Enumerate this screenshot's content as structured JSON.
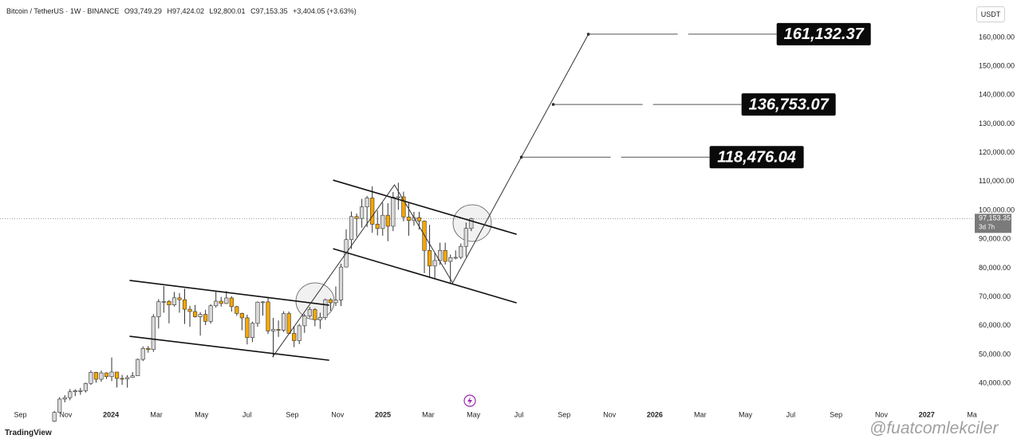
{
  "chart_data": {
    "type": "candlestick",
    "header": {
      "symbol": "Bitcoin / TetherUS · 1W · BINANCE",
      "open": "O93,749.29",
      "high": "H97,424.02",
      "low": "L92,800.01",
      "close": "C97,153.35",
      "change": "+3,404.05 (+3.63%)"
    },
    "currency": "USDT",
    "brand": "TradingView",
    "watermark": "@fuatcomlekciler",
    "up_color": "#d9d9d9",
    "down_color": "#f7a600",
    "xlim": [
      -0.9,
      42.05
    ],
    "ylim": [
      32000,
      173000
    ],
    "xticks": [
      {
        "value": 0,
        "label": "Sep"
      },
      {
        "value": 2,
        "label": "Nov"
      },
      {
        "value": 4,
        "label": "2024"
      },
      {
        "value": 6,
        "label": "Mar"
      },
      {
        "value": 8,
        "label": "May"
      },
      {
        "value": 10,
        "label": "Jul"
      },
      {
        "value": 12,
        "label": "Sep"
      },
      {
        "value": 14,
        "label": "Nov"
      },
      {
        "value": 16,
        "label": "2025"
      },
      {
        "value": 18,
        "label": "Mar"
      },
      {
        "value": 20,
        "label": "May"
      },
      {
        "value": 22,
        "label": "Jul"
      },
      {
        "value": 24,
        "label": "Sep"
      },
      {
        "value": 26,
        "label": "Nov"
      },
      {
        "value": 28,
        "label": "2026"
      },
      {
        "value": 30,
        "label": "Mar"
      },
      {
        "value": 32,
        "label": "May"
      },
      {
        "value": 34,
        "label": "Jul"
      },
      {
        "value": 36,
        "label": "Sep"
      },
      {
        "value": 38,
        "label": "Nov"
      },
      {
        "value": 40,
        "label": "2027"
      },
      {
        "value": 42,
        "label": "Ma"
      }
    ],
    "yticks": [
      {
        "value": 40000,
        "label": "40,000.00"
      },
      {
        "value": 50000,
        "label": "50,000.00"
      },
      {
        "value": 60000,
        "label": "60,000.00"
      },
      {
        "value": 70000,
        "label": "70,000.00"
      },
      {
        "value": 80000,
        "label": "80,000.00"
      },
      {
        "value": 90000,
        "label": "90,000.00"
      },
      {
        "value": 100000,
        "label": "100,000.00"
      },
      {
        "value": 110000,
        "label": "110,000.00"
      },
      {
        "value": 120000,
        "label": "120,000.00"
      },
      {
        "value": 130000,
        "label": "130,000.00"
      },
      {
        "value": 140000,
        "label": "140,000.00"
      },
      {
        "value": 150000,
        "label": "150,000.00"
      },
      {
        "value": 160000,
        "label": "160,000.00"
      }
    ],
    "x": [
      1.5,
      1.73,
      1.96,
      2.19,
      2.42,
      2.65,
      2.88,
      3.11,
      3.34,
      3.57,
      3.8,
      4.03,
      4.26,
      4.49,
      4.72,
      4.95,
      5.18,
      5.41,
      5.64,
      5.87,
      6.1,
      6.33,
      6.56,
      6.79,
      7.02,
      7.25,
      7.48,
      7.71,
      7.94,
      8.17,
      8.4,
      8.63,
      8.86,
      9.09,
      9.32,
      9.55,
      9.78,
      10.01,
      10.24,
      10.47,
      10.7,
      10.93,
      11.16,
      11.39,
      11.62,
      11.85,
      12.08,
      12.31,
      12.54,
      12.77,
      13.0,
      13.23,
      13.46,
      13.69,
      13.92,
      14.15,
      14.38,
      14.61,
      14.84,
      15.07,
      15.3,
      15.53,
      15.76,
      15.99,
      16.22,
      16.45,
      16.68,
      16.91,
      17.14,
      17.37,
      17.6,
      17.83,
      18.06,
      18.29,
      18.52,
      18.75,
      18.98,
      19.21,
      19.44,
      19.67,
      19.9
    ],
    "open": [
      26850,
      29900,
      34500,
      35000,
      37050,
      37400,
      37450,
      39950,
      43800,
      41400,
      43600,
      42300,
      43900,
      41700,
      41550,
      42000,
      42600,
      48300,
      52100,
      51700,
      63100,
      68300,
      68400,
      67200,
      69650,
      69000,
      65700,
      64900,
      63100,
      63900,
      61500,
      66900,
      68500,
      67700,
      69600,
      66600,
      64250,
      62700,
      55850,
      60800,
      68150,
      68250,
      58150,
      58700,
      58400,
      64200,
      57300,
      54800,
      59950,
      63350,
      65600,
      62050,
      62850,
      69000,
      67950,
      68900,
      80350,
      89850,
      97850,
      97200,
      101200,
      104300,
      95200,
      93700,
      98300,
      94500,
      104600,
      104700,
      97700,
      96500,
      97500,
      96300,
      86100,
      80700,
      82600,
      86100,
      82300,
      83600,
      83700,
      87500,
      93749.29
    ],
    "high": [
      30400,
      35200,
      35900,
      38000,
      37950,
      38400,
      40250,
      44500,
      44000,
      44400,
      43800,
      48950,
      43200,
      42900,
      42850,
      43900,
      48600,
      52800,
      52950,
      64000,
      69200,
      73750,
      68900,
      71700,
      71300,
      72800,
      66900,
      67200,
      64700,
      65500,
      67400,
      71900,
      70000,
      72000,
      70200,
      66900,
      64500,
      63800,
      61400,
      68400,
      68500,
      70000,
      62700,
      61800,
      65000,
      64900,
      59800,
      60650,
      64100,
      66500,
      66100,
      64500,
      69400,
      69500,
      73600,
      81500,
      93400,
      99600,
      98900,
      104000,
      105000,
      108350,
      99900,
      102700,
      102500,
      106400,
      109600,
      106500,
      102500,
      99500,
      99500,
      96500,
      95000,
      85300,
      88800,
      88800,
      84700,
      86100,
      88500,
      95750,
      97424.02
    ],
    "low": [
      26550,
      29700,
      33400,
      34100,
      35550,
      36000,
      36800,
      39450,
      40200,
      40550,
      41500,
      40750,
      38550,
      39450,
      38500,
      41900,
      42500,
      47700,
      50600,
      50900,
      59000,
      64500,
      60800,
      66600,
      64500,
      60600,
      59600,
      62800,
      56550,
      60200,
      60700,
      66300,
      66600,
      67500,
      64900,
      63400,
      58400,
      53500,
      54300,
      59600,
      63500,
      57100,
      49050,
      56100,
      57800,
      57200,
      52550,
      53600,
      57500,
      62700,
      59800,
      58900,
      62000,
      65200,
      66800,
      66800,
      80200,
      86600,
      90800,
      94000,
      94200,
      92200,
      91300,
      91200,
      89300,
      92800,
      100200,
      96200,
      91200,
      94700,
      93400,
      78200,
      76600,
      76550,
      81100,
      81200,
      74500,
      83000,
      83100,
      83900,
      92800.01
    ],
    "close": [
      29900,
      34500,
      35000,
      37050,
      37400,
      37450,
      39950,
      43800,
      41400,
      43600,
      42300,
      43900,
      41700,
      41550,
      42000,
      42600,
      48300,
      52100,
      51700,
      63100,
      68300,
      68400,
      67200,
      69650,
      69000,
      65700,
      64900,
      63100,
      63900,
      61500,
      66900,
      68500,
      67700,
      69600,
      66600,
      64250,
      62700,
      55850,
      60800,
      68150,
      68250,
      58150,
      58700,
      58400,
      64200,
      57300,
      54800,
      59950,
      63350,
      65600,
      62050,
      62850,
      69000,
      67950,
      68900,
      80350,
      89850,
      97850,
      97200,
      101200,
      104300,
      95200,
      93700,
      98300,
      94500,
      104600,
      104700,
      97700,
      96500,
      97500,
      96300,
      86100,
      80700,
      82600,
      86100,
      82300,
      83600,
      83700,
      87500,
      93749.29,
      97153.35
    ],
    "last_price": {
      "value": 97153.35,
      "label": "97,153.35"
    },
    "countdown": "3d 7h",
    "trendlines": [
      {
        "x": [
          4.82,
          13.63
        ],
        "y": [
          75700,
          67100
        ]
      },
      {
        "x": [
          4.82,
          13.63
        ],
        "y": [
          56300,
          48000
        ]
      },
      {
        "x": [
          13.8,
          21.9
        ],
        "y": [
          110500,
          91700
        ]
      },
      {
        "x": [
          13.8,
          21.9
        ],
        "y": [
          86700,
          67900
        ]
      }
    ],
    "pattern": {
      "x": [
        11.13,
        16.51,
        19.08,
        25.07
      ],
      "y": [
        49130,
        108850,
        74850,
        161132.37
      ]
    },
    "targets": [
      {
        "x": 25.07,
        "value": 161132.37,
        "label": "161,132.37"
      },
      {
        "x": 23.52,
        "value": 136753.07,
        "label": "136,753.07"
      },
      {
        "x": 22.11,
        "value": 118476.04,
        "label": "118,476.04"
      }
    ]
  }
}
